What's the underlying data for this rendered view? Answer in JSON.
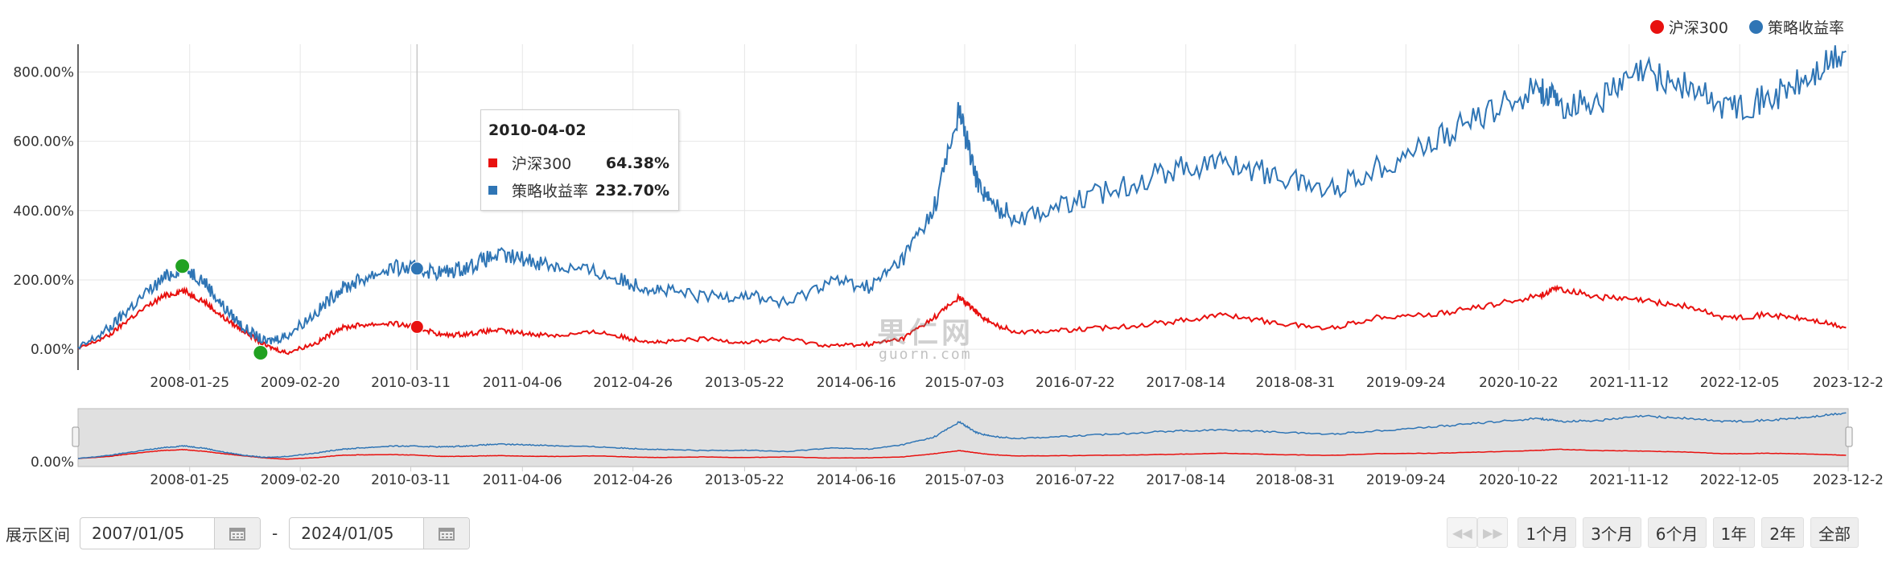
{
  "legend": [
    {
      "label": "沪深300",
      "color": "#e8110f"
    },
    {
      "label": "策略收益率",
      "color": "#2f75b5"
    }
  ],
  "tooltip": {
    "date": "2010-04-02",
    "rows": [
      {
        "label": "沪深300",
        "value": "64.38%",
        "color": "#e8110f"
      },
      {
        "label": "策略收益率",
        "value": "232.70%",
        "color": "#2f75b5"
      }
    ]
  },
  "watermark": {
    "text": "果仁网",
    "sub": "guorn.com"
  },
  "range": {
    "label": "展示区间",
    "start": "2007/01/05",
    "separator": "-",
    "end": "2024/01/05"
  },
  "buttons": [
    "1个月",
    "3个月",
    "6个月",
    "1年",
    "2年",
    "全部"
  ],
  "nav_icons": [
    "rewind-icon",
    "fast-forward-icon"
  ],
  "chart_data": {
    "type": "line",
    "x_ticks": [
      "2008-01-25",
      "2009-02-20",
      "2010-03-11",
      "2011-04-06",
      "2012-04-26",
      "2013-05-22",
      "2014-06-16",
      "2015-07-03",
      "2016-07-22",
      "2017-08-14",
      "2018-08-31",
      "2019-09-24",
      "2020-10-22",
      "2021-11-12",
      "2022-12-05",
      "2023-12-2"
    ],
    "y_ticks": [
      "0.00%",
      "200.00%",
      "400.00%",
      "600.00%",
      "800.00%"
    ],
    "ylim": [
      -60,
      880
    ],
    "navigator_y_tick": "0.00%",
    "series": [
      {
        "name": "沪深300",
        "color": "#e8110f",
        "x": [
          2007.0,
          2007.3,
          2007.5,
          2007.8,
          2008.0,
          2008.2,
          2008.4,
          2008.6,
          2008.8,
          2009.0,
          2009.3,
          2009.5,
          2009.7,
          2010.0,
          2010.25,
          2010.5,
          2010.75,
          2011.0,
          2011.3,
          2011.6,
          2012.0,
          2012.3,
          2012.6,
          2013.0,
          2013.4,
          2013.8,
          2014.2,
          2014.6,
          2014.9,
          2015.2,
          2015.45,
          2015.6,
          2015.75,
          2016.0,
          2016.5,
          2017.0,
          2017.5,
          2018.0,
          2018.5,
          2019.0,
          2019.5,
          2020.0,
          2020.5,
          2021.0,
          2021.2,
          2021.6,
          2022.0,
          2022.4,
          2022.8,
          2023.2,
          2023.6,
          2023.95
        ],
        "y": [
          0,
          40,
          90,
          150,
          170,
          140,
          90,
          50,
          10,
          -10,
          20,
          60,
          70,
          75,
          64,
          40,
          45,
          55,
          45,
          40,
          50,
          30,
          20,
          30,
          20,
          30,
          10,
          15,
          30,
          90,
          150,
          110,
          75,
          50,
          55,
          65,
          80,
          100,
          75,
          60,
          95,
          100,
          125,
          155,
          175,
          150,
          140,
          125,
          90,
          100,
          85,
          62
        ]
      },
      {
        "name": "策略收益率",
        "color": "#2f75b5",
        "x": [
          2007.0,
          2007.3,
          2007.5,
          2007.8,
          2008.0,
          2008.2,
          2008.4,
          2008.6,
          2008.8,
          2009.0,
          2009.3,
          2009.5,
          2009.7,
          2010.0,
          2010.25,
          2010.5,
          2010.75,
          2011.0,
          2011.3,
          2011.6,
          2012.0,
          2012.3,
          2012.6,
          2013.0,
          2013.4,
          2013.8,
          2014.2,
          2014.6,
          2014.9,
          2015.2,
          2015.45,
          2015.6,
          2015.75,
          2016.0,
          2016.5,
          2017.0,
          2017.5,
          2018.0,
          2018.5,
          2019.0,
          2019.5,
          2020.0,
          2020.5,
          2021.0,
          2021.2,
          2021.6,
          2022.0,
          2022.4,
          2022.8,
          2023.2,
          2023.6,
          2023.95
        ],
        "y": [
          0,
          60,
          120,
          200,
          240,
          200,
          120,
          60,
          20,
          40,
          110,
          170,
          200,
          235,
          232,
          220,
          240,
          270,
          260,
          240,
          220,
          190,
          170,
          150,
          160,
          130,
          200,
          180,
          260,
          400,
          690,
          500,
          420,
          380,
          420,
          470,
          520,
          540,
          500,
          460,
          530,
          600,
          680,
          760,
          700,
          720,
          800,
          760,
          700,
          720,
          780,
          860
        ]
      }
    ],
    "markers": [
      {
        "x": 2008.0,
        "y": 240,
        "color": "#21a121"
      },
      {
        "x": 2008.75,
        "y": -10,
        "color": "#21a121"
      },
      {
        "x": 2010.25,
        "y": 232.7,
        "color": "#2f75b5"
      },
      {
        "x": 2010.25,
        "y": 64.38,
        "color": "#e8110f"
      }
    ]
  }
}
